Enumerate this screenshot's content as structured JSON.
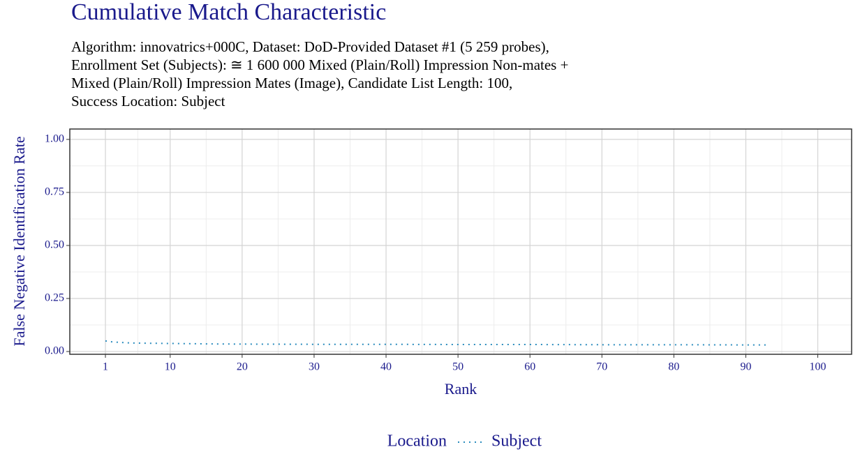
{
  "chart_data": {
    "type": "line",
    "title": "Cumulative Match Characteristic",
    "subtitle": [
      "Algorithm: innovatrics+000C, Dataset: DoD-Provided Dataset #1 (5 259 probes),",
      "Enrollment Set (Subjects): ≅ 1 600 000 Mixed (Plain/Roll) Impression Non-mates +",
      "Mixed (Plain/Roll) Impression Mates (Image), Candidate List Length: 100,",
      "Success Location: Subject"
    ],
    "xlabel": "Rank",
    "ylabel": "False Negative Identification Rate",
    "legend_title": "Location",
    "legend_position": "bottom",
    "x": [
      1,
      2,
      3,
      4,
      5,
      7,
      10,
      15,
      20,
      30,
      40,
      50,
      60,
      70,
      80,
      90,
      93
    ],
    "series": [
      {
        "name": "Subject",
        "color": "#2b8cbe",
        "values": [
          0.05,
          0.045,
          0.043,
          0.041,
          0.04,
          0.039,
          0.038,
          0.036,
          0.035,
          0.034,
          0.034,
          0.033,
          0.033,
          0.032,
          0.032,
          0.031,
          0.031
        ]
      }
    ],
    "xlim": [
      -3.95,
      104.7
    ],
    "xticks": [
      1,
      10,
      20,
      30,
      40,
      50,
      60,
      70,
      80,
      90,
      100
    ],
    "ylim": [
      -0.013,
      1.049
    ],
    "yticks": [
      {
        "value": 0,
        "label": "0.00"
      },
      {
        "value": 0.25,
        "label": "0.25"
      },
      {
        "value": 0.5,
        "label": "0.50"
      },
      {
        "value": 0.75,
        "label": "0.75"
      },
      {
        "value": 1,
        "label": "1.00"
      }
    ],
    "grid": true
  }
}
